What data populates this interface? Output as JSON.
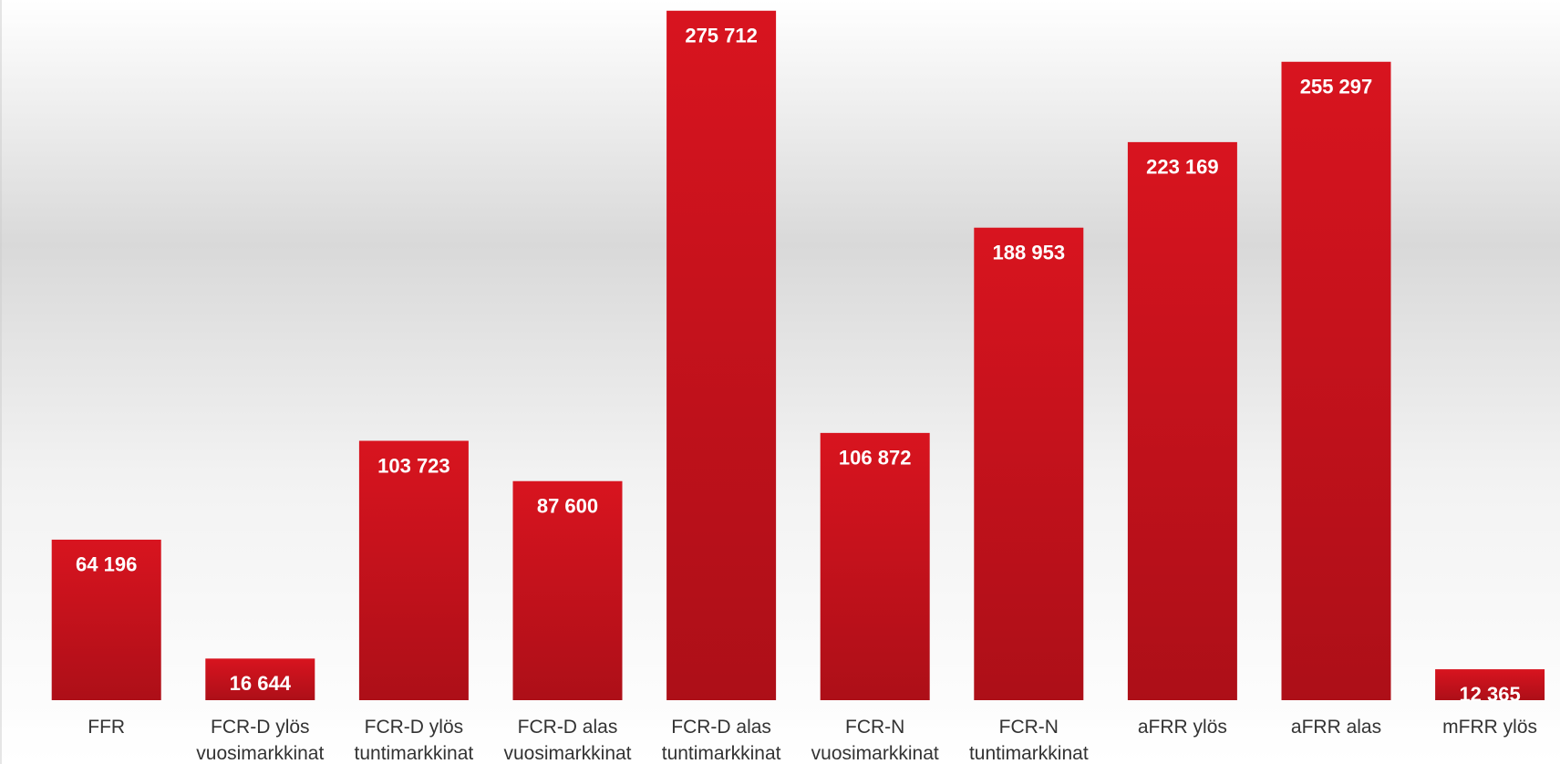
{
  "chart_data": {
    "type": "bar",
    "categories": [
      "FFR",
      "FCR-D ylös\nvuosimarkkinat",
      "FCR-D ylös\ntuntimarkkinat",
      "FCR-D alas\nvuosimarkkinat",
      "FCR-D alas\ntuntimarkkinat",
      "FCR-N\nvuosimarkkinat",
      "FCR-N\ntuntimarkkinat",
      "aFRR ylös",
      "aFRR alas",
      "mFRR ylös"
    ],
    "values": [
      64196,
      16644,
      103723,
      87600,
      275712,
      106872,
      188953,
      223169,
      255297,
      12365
    ],
    "value_labels": [
      "64 196",
      "16 644",
      "103 723",
      "87 600",
      "275 712",
      "106 872",
      "188 953",
      "223 169",
      "255 297",
      "12 365"
    ],
    "color": "#d3131f",
    "ylim": [
      0,
      280000
    ]
  }
}
